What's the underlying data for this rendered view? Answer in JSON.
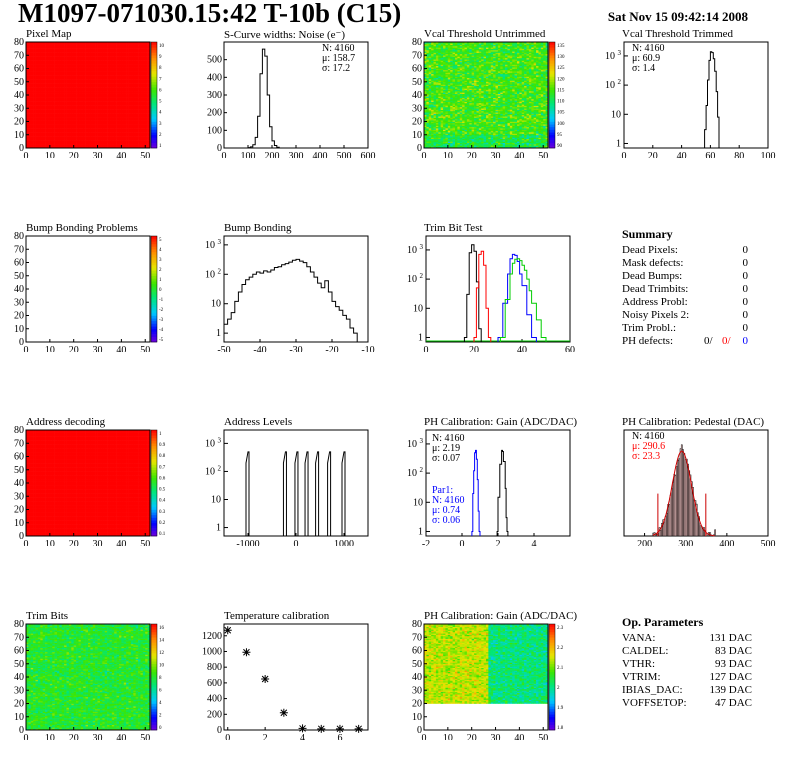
{
  "header": {
    "title": "M1097-071030.15:42 T-10b (C15)",
    "date": "Sat Nov 15 09:42:14 2008"
  },
  "pixel_map": {
    "title": "Pixel Map",
    "palette_ticks": [
      "10",
      "9",
      "8",
      "7",
      "6",
      "5",
      "4",
      "3",
      "2",
      "1"
    ]
  },
  "scurve": {
    "title": "S-Curve widths: Noise (e⁻)",
    "stats": [
      "N: 4160",
      "μ: 158.7",
      "σ: 17.2"
    ]
  },
  "vcal_untrimmed": {
    "title": "Vcal Threshold Untrimmed",
    "palette_ticks": [
      "135",
      "130",
      "125",
      "120",
      "115",
      "110",
      "105",
      "100",
      "95",
      "90"
    ]
  },
  "vcal_trimmed": {
    "title": "Vcal Threshold Trimmed",
    "stats": [
      "N: 4160",
      "μ: 60.9",
      "σ:  1.4"
    ]
  },
  "bump_problems": {
    "title": "Bump Bonding Problems",
    "palette_ticks": [
      "5",
      "4",
      "3",
      "2",
      "1",
      "0",
      "-1",
      "-2",
      "-3",
      "-4",
      "-5"
    ]
  },
  "bump_bonding": {
    "title": "Bump Bonding"
  },
  "trim_bit_test": {
    "title": "Trim Bit Test"
  },
  "summary": {
    "title": "Summary",
    "rows": [
      {
        "label": "Dead Pixels:",
        "value": "0"
      },
      {
        "label": "Mask defects:",
        "value": "0"
      },
      {
        "label": "Dead Bumps:",
        "value": "0"
      },
      {
        "label": "Dead Trimbits:",
        "value": "0"
      },
      {
        "label": "Address Probl:",
        "value": "0"
      },
      {
        "label": "Noisy Pixels 2:",
        "value": "0"
      },
      {
        "label": "Trim Probl.:",
        "value": "0"
      }
    ],
    "ph_defects": {
      "label": "PH defects:",
      "v1": "0/",
      "v2": "0/",
      "v3": "0"
    }
  },
  "address_decoding": {
    "title": "Address decoding",
    "palette_ticks": [
      "1",
      "0.9",
      "0.8",
      "0.7",
      "0.6",
      "0.5",
      "0.4",
      "0.3",
      "0.2",
      "0.1"
    ]
  },
  "address_levels": {
    "title": "Address Levels"
  },
  "ph_gain": {
    "title": "PH Calibration: Gain (ADC/DAC)",
    "stats": [
      "N: 4160",
      "μ: 2.19",
      "σ: 0.07"
    ],
    "par1": [
      "Par1:",
      "N: 4160",
      "μ: 0.74",
      "σ: 0.06"
    ]
  },
  "ph_pedestal": {
    "title": "PH Calibration: Pedestal (DAC)",
    "stats": [
      "N: 4160",
      "μ: 290.6",
      "σ: 23.3"
    ]
  },
  "trim_bits": {
    "title": "Trim Bits",
    "palette_ticks": [
      "16",
      "14",
      "12",
      "10",
      "8",
      "6",
      "4",
      "2",
      "0"
    ]
  },
  "temperature": {
    "title": "Temperature calibration"
  },
  "ph_gain_map": {
    "title": "PH Calibration: Gain (ADC/DAC)",
    "palette_ticks": [
      "2.3",
      "2.2",
      "2.1",
      "2",
      "1.9",
      "1.8"
    ]
  },
  "op_params": {
    "title": "Op. Parameters",
    "rows": [
      {
        "label": "VANA:",
        "value": "131 DAC"
      },
      {
        "label": "CALDEL:",
        "value": "83 DAC"
      },
      {
        "label": "VTHR:",
        "value": "93 DAC"
      },
      {
        "label": "VTRIM:",
        "value": "127 DAC"
      },
      {
        "label": "IBIAS_DAC:",
        "value": "139 DAC"
      },
      {
        "label": "VOFFSETOP:",
        "value": "47 DAC"
      }
    ]
  },
  "colors": {
    "red": "#ff0000",
    "blue": "#0000ff",
    "green": "#00cc00",
    "dark_red": "#cc0000"
  },
  "chart_data": [
    {
      "id": "pixel_map",
      "type": "heatmap",
      "xlim": [
        0,
        52
      ],
      "ylim": [
        0,
        80
      ],
      "x_ticks": [
        0,
        10,
        20,
        30,
        40,
        50
      ],
      "y_ticks": [
        0,
        10,
        20,
        30,
        40,
        50,
        60,
        70,
        80
      ],
      "zlim": [
        0,
        10
      ],
      "uniform_value": 10
    },
    {
      "id": "scurve",
      "type": "bar",
      "xlim": [
        0,
        600
      ],
      "ylim": [
        0,
        600
      ],
      "x_ticks": [
        0,
        100,
        200,
        300,
        400,
        500,
        600
      ],
      "y_ticks": [
        0,
        100,
        200,
        300,
        400,
        500
      ],
      "bins": [
        [
          100,
          2
        ],
        [
          110,
          6
        ],
        [
          120,
          18
        ],
        [
          130,
          60
        ],
        [
          140,
          180
        ],
        [
          150,
          420
        ],
        [
          160,
          560
        ],
        [
          170,
          520
        ],
        [
          180,
          300
        ],
        [
          190,
          120
        ],
        [
          200,
          40
        ],
        [
          210,
          14
        ],
        [
          220,
          4
        ]
      ]
    },
    {
      "id": "vcal_untrimmed",
      "type": "heatmap",
      "xlim": [
        0,
        52
      ],
      "ylim": [
        0,
        80
      ],
      "x_ticks": [
        0,
        10,
        20,
        30,
        40,
        50
      ],
      "y_ticks": [
        0,
        10,
        20,
        30,
        40,
        50,
        60,
        70,
        80
      ],
      "zlim": [
        85,
        135
      ]
    },
    {
      "id": "vcal_trimmed",
      "type": "bar",
      "log": true,
      "xlim": [
        0,
        100
      ],
      "ylim": [
        0.7,
        3000
      ],
      "x_ticks": [
        0,
        20,
        40,
        60,
        80,
        100
      ],
      "bins": [
        [
          56,
          3
        ],
        [
          57,
          20
        ],
        [
          58,
          150
        ],
        [
          59,
          700
        ],
        [
          60,
          1400
        ],
        [
          61,
          1300
        ],
        [
          62,
          800
        ],
        [
          63,
          300
        ],
        [
          64,
          60
        ],
        [
          65,
          8
        ]
      ]
    },
    {
      "id": "bump_problems",
      "type": "heatmap",
      "xlim": [
        0,
        52
      ],
      "ylim": [
        0,
        80
      ],
      "x_ticks": [
        0,
        10,
        20,
        30,
        40,
        50
      ],
      "y_ticks": [
        0,
        10,
        20,
        30,
        40,
        50,
        60,
        70,
        80
      ],
      "zlim": [
        -5,
        5
      ]
    },
    {
      "id": "bump_bonding",
      "type": "bar",
      "log": true,
      "xlim": [
        -50,
        -10
      ],
      "ylim": [
        0.5,
        2000
      ],
      "x_ticks": [
        -50,
        -40,
        -30,
        -20,
        -10
      ],
      "bins": [
        [
          -50,
          2
        ],
        [
          -49,
          3
        ],
        [
          -48,
          5
        ],
        [
          -47,
          12
        ],
        [
          -46,
          25
        ],
        [
          -45,
          45
        ],
        [
          -44,
          65
        ],
        [
          -43,
          80
        ],
        [
          -42,
          100
        ],
        [
          -41,
          120
        ],
        [
          -40,
          110
        ],
        [
          -39,
          130
        ],
        [
          -38,
          120
        ],
        [
          -37,
          140
        ],
        [
          -36,
          170
        ],
        [
          -35,
          180
        ],
        [
          -34,
          210
        ],
        [
          -33,
          230
        ],
        [
          -32,
          260
        ],
        [
          -31,
          300
        ],
        [
          -30,
          320
        ],
        [
          -29,
          280
        ],
        [
          -28,
          250
        ],
        [
          -27,
          180
        ],
        [
          -26,
          120
        ],
        [
          -25,
          80
        ],
        [
          -24,
          50
        ],
        [
          -23,
          35
        ],
        [
          -22,
          60
        ],
        [
          -21,
          25
        ],
        [
          -20,
          12
        ],
        [
          -19,
          8
        ],
        [
          -18,
          6
        ],
        [
          -17,
          4
        ],
        [
          -16,
          3
        ],
        [
          -15,
          1.5
        ],
        [
          -14,
          1
        ]
      ]
    },
    {
      "id": "trim_bit_test",
      "type": "line",
      "log": true,
      "xlim": [
        0,
        60
      ],
      "ylim": [
        0.7,
        3000
      ],
      "x_ticks": [
        0,
        20,
        40,
        60
      ],
      "series": [
        {
          "color": "#000000",
          "points": [
            [
              16,
              1
            ],
            [
              17,
              30
            ],
            [
              18,
              800
            ],
            [
              19,
              1500
            ],
            [
              20,
              900
            ],
            [
              21,
              80
            ],
            [
              22,
              2
            ]
          ]
        },
        {
          "color": "#ff0000",
          "points": [
            [
              20,
              1
            ],
            [
              21,
              50
            ],
            [
              22,
              700
            ],
            [
              23,
              900
            ],
            [
              24,
              300
            ],
            [
              25,
              10
            ],
            [
              26,
              1
            ]
          ]
        },
        {
          "color": "#0000ff",
          "points": [
            [
              30,
              1
            ],
            [
              32,
              15
            ],
            [
              34,
              150
            ],
            [
              35,
              500
            ],
            [
              36,
              700
            ],
            [
              37,
              650
            ],
            [
              38,
              400
            ],
            [
              39,
              150
            ],
            [
              40,
              60
            ],
            [
              42,
              6
            ],
            [
              44,
              1
            ]
          ]
        },
        {
          "color": "#00cc00",
          "points": [
            [
              31,
              1
            ],
            [
              33,
              20
            ],
            [
              35,
              150
            ],
            [
              36,
              350
            ],
            [
              37,
              480
            ],
            [
              38,
              500
            ],
            [
              39,
              430
            ],
            [
              40,
              300
            ],
            [
              41,
              200
            ],
            [
              42,
              100
            ],
            [
              43,
              40
            ],
            [
              44,
              15
            ],
            [
              46,
              4
            ],
            [
              48,
              1
            ]
          ]
        }
      ]
    },
    {
      "id": "address_decoding",
      "type": "heatmap",
      "xlim": [
        0,
        52
      ],
      "ylim": [
        0,
        80
      ],
      "x_ticks": [
        0,
        10,
        20,
        30,
        40,
        50
      ],
      "y_ticks": [
        0,
        10,
        20,
        30,
        40,
        50,
        60,
        70,
        80
      ],
      "zlim": [
        0,
        1
      ],
      "uniform_value": 1
    },
    {
      "id": "address_levels",
      "type": "bar",
      "log": true,
      "xlim": [
        -1500,
        1500
      ],
      "ylim": [
        0.5,
        3000
      ],
      "x_ticks": [
        -1000,
        0,
        1000
      ],
      "peaks": [
        -1000,
        -220,
        20,
        230,
        450,
        700,
        1000
      ],
      "peak_height": 500
    },
    {
      "id": "ph_gain",
      "type": "line",
      "log": true,
      "xlim": [
        -2,
        6
      ],
      "ylim": [
        0.7,
        3000
      ],
      "x_ticks": [
        -2,
        0,
        2,
        4
      ],
      "series": [
        {
          "color": "#0000ff",
          "points": [
            [
              0.55,
              1
            ],
            [
              0.6,
              20
            ],
            [
              0.65,
              120
            ],
            [
              0.7,
              500
            ],
            [
              0.75,
              600
            ],
            [
              0.8,
              300
            ],
            [
              0.85,
              60
            ],
            [
              0.9,
              5
            ],
            [
              0.95,
              1
            ]
          ]
        },
        {
          "color": "#000000",
          "points": [
            [
              1.95,
              1
            ],
            [
              2.0,
              15
            ],
            [
              2.1,
              200
            ],
            [
              2.2,
              600
            ],
            [
              2.25,
              550
            ],
            [
              2.3,
              250
            ],
            [
              2.4,
              30
            ],
            [
              2.45,
              3
            ],
            [
              2.5,
              1
            ]
          ]
        }
      ]
    },
    {
      "id": "ph_pedestal",
      "type": "bar",
      "xlim": [
        150,
        500
      ],
      "ylim": [
        0,
        100
      ],
      "x_ticks": [
        200,
        300,
        400,
        500
      ],
      "mean": 290.6,
      "sigma": 23.3,
      "amplitude": 80
    },
    {
      "id": "trim_bits",
      "type": "heatmap",
      "xlim": [
        0,
        52
      ],
      "ylim": [
        0,
        80
      ],
      "x_ticks": [
        0,
        10,
        20,
        30,
        40,
        50
      ],
      "y_ticks": [
        0,
        10,
        20,
        30,
        40,
        50,
        60,
        70,
        80
      ],
      "zlim": [
        0,
        16
      ]
    },
    {
      "id": "temperature",
      "type": "scatter",
      "xlim": [
        -0.2,
        7.5
      ],
      "ylim": [
        0,
        1350
      ],
      "x_ticks": [
        0,
        2,
        4,
        6
      ],
      "y_ticks": [
        0,
        200,
        400,
        600,
        800,
        1000,
        1200
      ],
      "points": [
        [
          0,
          1270
        ],
        [
          1,
          990
        ],
        [
          2,
          650
        ],
        [
          3,
          220
        ],
        [
          4,
          20
        ],
        [
          5,
          15
        ],
        [
          6,
          15
        ],
        [
          7,
          15
        ]
      ]
    },
    {
      "id": "ph_gain_map",
      "type": "heatmap",
      "xlim": [
        0,
        52
      ],
      "ylim": [
        0,
        80
      ],
      "x_ticks": [
        0,
        10,
        20,
        30,
        40,
        50
      ],
      "y_ticks": [
        0,
        10,
        20,
        30,
        40,
        50,
        60,
        70,
        80
      ],
      "zlim": [
        1.75,
        2.35
      ]
    }
  ]
}
